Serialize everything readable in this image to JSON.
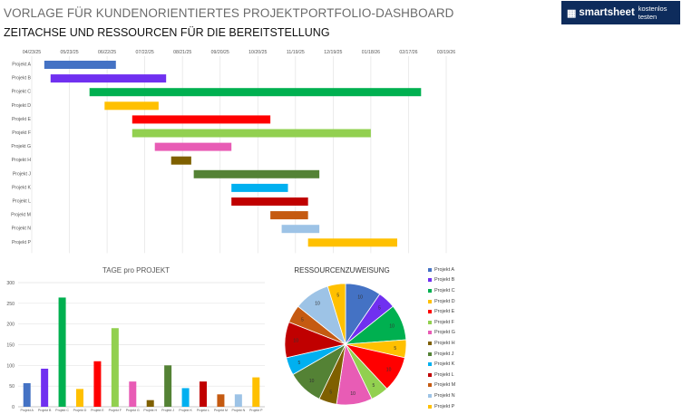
{
  "header": {
    "title": "VORLAGE FÜR KUNDENORIENTIERTES PROJEKTPORTFOLIO-DASHBOARD",
    "subtitle": "ZEITACHSE UND RESSOURCEN FÜR DIE BEREITSTELLUNG",
    "brand_name": "smartsheet",
    "brand_tagline": "kostenlos testen",
    "brand_icon": "smartsheet-logo-icon",
    "brand_color": "#0e2c5c"
  },
  "chart_data": [
    {
      "type": "gantt",
      "title": "",
      "x_ticks": [
        "04/23/25",
        "05/23/25",
        "06/22/25",
        "07/22/25",
        "08/21/25",
        "09/20/25",
        "10/20/25",
        "11/19/25",
        "12/19/25",
        "01/18/26",
        "02/17/26",
        "03/19/26"
      ],
      "x_range_days": [
        0,
        330
      ],
      "tasks": [
        {
          "name": "Projekt A",
          "start": 10,
          "duration": 57,
          "color": "#4472c4"
        },
        {
          "name": "Projekt B",
          "start": 15,
          "duration": 92,
          "color": "#7030f0"
        },
        {
          "name": "Projekt C",
          "start": 46,
          "duration": 264,
          "color": "#00b050"
        },
        {
          "name": "Projekt D",
          "start": 58,
          "duration": 43,
          "color": "#ffc000"
        },
        {
          "name": "Projekt E",
          "start": 80,
          "duration": 110,
          "color": "#ff0000"
        },
        {
          "name": "Projekt F",
          "start": 80,
          "duration": 190,
          "color": "#92d050"
        },
        {
          "name": "Projekt G",
          "start": 98,
          "duration": 61,
          "color": "#e85cb5"
        },
        {
          "name": "Projekt H",
          "start": 111,
          "duration": 16,
          "color": "#7f6000"
        },
        {
          "name": "Projekt J",
          "start": 129,
          "duration": 100,
          "color": "#548235"
        },
        {
          "name": "Projekt K",
          "start": 159,
          "duration": 45,
          "color": "#00b0f0"
        },
        {
          "name": "Projekt L",
          "start": 159,
          "duration": 61,
          "color": "#c00000"
        },
        {
          "name": "Projekt M",
          "start": 190,
          "duration": 30,
          "color": "#c55a11"
        },
        {
          "name": "Projekt N",
          "start": 199,
          "duration": 30,
          "color": "#9dc3e6"
        },
        {
          "name": "Projekt P",
          "start": 220,
          "duration": 71,
          "color": "#ffc000"
        }
      ]
    },
    {
      "type": "bar",
      "title": "TAGE pro PROJEKT",
      "categories": [
        "Projekt A",
        "Projekt B",
        "Projekt C",
        "Projekt D",
        "Projekt E",
        "Projekt F",
        "Projekt G",
        "Projekt H",
        "Projekt J",
        "Projekt K",
        "Projekt L",
        "Projekt M",
        "Projekt N",
        "Projekt P"
      ],
      "values": [
        57,
        92,
        264,
        43,
        110,
        190,
        61,
        16,
        100,
        45,
        61,
        30,
        30,
        71
      ],
      "colors": [
        "#4472c4",
        "#7030f0",
        "#00b050",
        "#ffc000",
        "#ff0000",
        "#92d050",
        "#e85cb5",
        "#7f6000",
        "#548235",
        "#00b0f0",
        "#c00000",
        "#c55a11",
        "#9dc3e6",
        "#ffc000"
      ],
      "y_ticks": [
        0,
        50,
        100,
        150,
        200,
        250,
        300
      ],
      "ylim": [
        0,
        300
      ],
      "grid": true
    },
    {
      "type": "pie",
      "title": "RESSOURCENZUWEISUNG",
      "categories": [
        "Projekt A",
        "Projekt B",
        "Projekt C",
        "Projekt D",
        "Projekt E",
        "Projekt F",
        "Projekt G",
        "Projekt H",
        "Projekt J",
        "Projekt K",
        "Projekt L",
        "Projekt M",
        "Projekt N",
        "Projekt P"
      ],
      "values": [
        10,
        5,
        10,
        5,
        10,
        5,
        10,
        5,
        10,
        5,
        10,
        5,
        10,
        5
      ],
      "colors": [
        "#4472c4",
        "#7030f0",
        "#00b050",
        "#ffc000",
        "#ff0000",
        "#92d050",
        "#e85cb5",
        "#7f6000",
        "#548235",
        "#00b0f0",
        "#c00000",
        "#c55a11",
        "#9dc3e6",
        "#ffc000"
      ],
      "legend": "right"
    }
  ]
}
